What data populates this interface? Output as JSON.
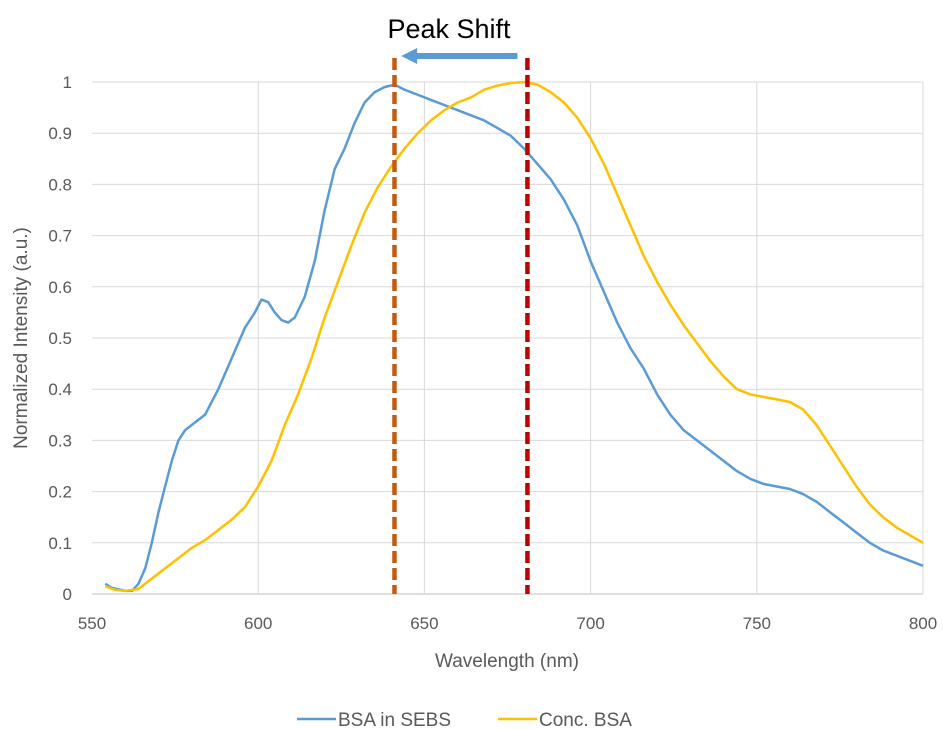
{
  "chart_data": {
    "type": "line",
    "title": "",
    "xlabel": "Wavelength (nm)",
    "ylabel": "Normalized Intensity (a.u.)",
    "xlim": [
      550,
      800
    ],
    "ylim": [
      0,
      1
    ],
    "x_ticks": [
      550,
      600,
      650,
      700,
      750,
      800
    ],
    "y_ticks": [
      0,
      0.1,
      0.2,
      0.3,
      0.4,
      0.5,
      0.6,
      0.7,
      0.8,
      0.9,
      1
    ],
    "y_tick_labels": [
      "0",
      "0.1",
      "0.2",
      "0.3",
      "0.4",
      "0.5",
      "0.6",
      "0.7",
      "0.8",
      "0.9",
      "1"
    ],
    "grid": true,
    "legend_position": "bottom",
    "series": [
      {
        "name": "BSA in SEBS",
        "color": "#5b9bd5",
        "points": [
          [
            554,
            0.02
          ],
          [
            556,
            0.012
          ],
          [
            558,
            0.009
          ],
          [
            560,
            0.006
          ],
          [
            562,
            0.006
          ],
          [
            564,
            0.02
          ],
          [
            566,
            0.05
          ],
          [
            568,
            0.1
          ],
          [
            570,
            0.16
          ],
          [
            572,
            0.21
          ],
          [
            574,
            0.26
          ],
          [
            576,
            0.3
          ],
          [
            578,
            0.32
          ],
          [
            580,
            0.33
          ],
          [
            584,
            0.35
          ],
          [
            588,
            0.4
          ],
          [
            592,
            0.46
          ],
          [
            596,
            0.52
          ],
          [
            599,
            0.55
          ],
          [
            601,
            0.575
          ],
          [
            603,
            0.57
          ],
          [
            605,
            0.55
          ],
          [
            607,
            0.535
          ],
          [
            609,
            0.53
          ],
          [
            611,
            0.54
          ],
          [
            614,
            0.58
          ],
          [
            617,
            0.65
          ],
          [
            620,
            0.75
          ],
          [
            623,
            0.83
          ],
          [
            626,
            0.87
          ],
          [
            629,
            0.92
          ],
          [
            632,
            0.96
          ],
          [
            635,
            0.98
          ],
          [
            638,
            0.99
          ],
          [
            641,
            0.995
          ],
          [
            644,
            0.985
          ],
          [
            648,
            0.975
          ],
          [
            652,
            0.965
          ],
          [
            656,
            0.955
          ],
          [
            660,
            0.945
          ],
          [
            664,
            0.935
          ],
          [
            668,
            0.925
          ],
          [
            672,
            0.91
          ],
          [
            676,
            0.895
          ],
          [
            680,
            0.87
          ],
          [
            684,
            0.84
          ],
          [
            688,
            0.81
          ],
          [
            692,
            0.77
          ],
          [
            696,
            0.72
          ],
          [
            700,
            0.65
          ],
          [
            704,
            0.59
          ],
          [
            708,
            0.53
          ],
          [
            712,
            0.48
          ],
          [
            716,
            0.44
          ],
          [
            720,
            0.39
          ],
          [
            724,
            0.35
          ],
          [
            728,
            0.32
          ],
          [
            732,
            0.3
          ],
          [
            736,
            0.28
          ],
          [
            740,
            0.26
          ],
          [
            744,
            0.24
          ],
          [
            748,
            0.225
          ],
          [
            752,
            0.215
          ],
          [
            756,
            0.21
          ],
          [
            760,
            0.205
          ],
          [
            764,
            0.195
          ],
          [
            768,
            0.18
          ],
          [
            772,
            0.16
          ],
          [
            776,
            0.14
          ],
          [
            780,
            0.12
          ],
          [
            784,
            0.1
          ],
          [
            788,
            0.085
          ],
          [
            792,
            0.075
          ],
          [
            796,
            0.065
          ],
          [
            800,
            0.055
          ]
        ]
      },
      {
        "name": "Conc. BSA",
        "color": "#ffc000",
        "points": [
          [
            554,
            0.015
          ],
          [
            557,
            0.008
          ],
          [
            560,
            0.006
          ],
          [
            564,
            0.01
          ],
          [
            568,
            0.03
          ],
          [
            572,
            0.05
          ],
          [
            576,
            0.07
          ],
          [
            580,
            0.09
          ],
          [
            584,
            0.105
          ],
          [
            588,
            0.125
          ],
          [
            592,
            0.145
          ],
          [
            596,
            0.17
          ],
          [
            600,
            0.21
          ],
          [
            604,
            0.26
          ],
          [
            608,
            0.33
          ],
          [
            612,
            0.39
          ],
          [
            616,
            0.46
          ],
          [
            620,
            0.54
          ],
          [
            624,
            0.61
          ],
          [
            628,
            0.68
          ],
          [
            632,
            0.745
          ],
          [
            636,
            0.795
          ],
          [
            640,
            0.835
          ],
          [
            644,
            0.87
          ],
          [
            648,
            0.9
          ],
          [
            652,
            0.925
          ],
          [
            656,
            0.945
          ],
          [
            660,
            0.96
          ],
          [
            664,
            0.97
          ],
          [
            668,
            0.985
          ],
          [
            672,
            0.993
          ],
          [
            676,
            0.998
          ],
          [
            680,
            1.0
          ],
          [
            684,
            0.995
          ],
          [
            688,
            0.98
          ],
          [
            692,
            0.96
          ],
          [
            696,
            0.93
          ],
          [
            700,
            0.89
          ],
          [
            704,
            0.84
          ],
          [
            708,
            0.78
          ],
          [
            712,
            0.72
          ],
          [
            716,
            0.66
          ],
          [
            720,
            0.61
          ],
          [
            724,
            0.565
          ],
          [
            728,
            0.525
          ],
          [
            732,
            0.49
          ],
          [
            736,
            0.455
          ],
          [
            740,
            0.425
          ],
          [
            744,
            0.4
          ],
          [
            748,
            0.39
          ],
          [
            752,
            0.385
          ],
          [
            756,
            0.38
          ],
          [
            760,
            0.375
          ],
          [
            764,
            0.36
          ],
          [
            768,
            0.33
          ],
          [
            772,
            0.29
          ],
          [
            776,
            0.25
          ],
          [
            780,
            0.21
          ],
          [
            784,
            0.175
          ],
          [
            788,
            0.15
          ],
          [
            792,
            0.13
          ],
          [
            796,
            0.115
          ],
          [
            800,
            0.1
          ]
        ]
      }
    ],
    "annotations": {
      "peak_shift_label": "Peak Shift",
      "arrow_direction": "left",
      "arrow_color": "#5b9bd5",
      "arrow_from_x": 678,
      "arrow_to_x": 643,
      "vlines": [
        {
          "x": 641,
          "color": "#c55a11",
          "style": "dashed"
        },
        {
          "x": 681,
          "color": "#c00000",
          "style": "dashed"
        }
      ]
    }
  }
}
